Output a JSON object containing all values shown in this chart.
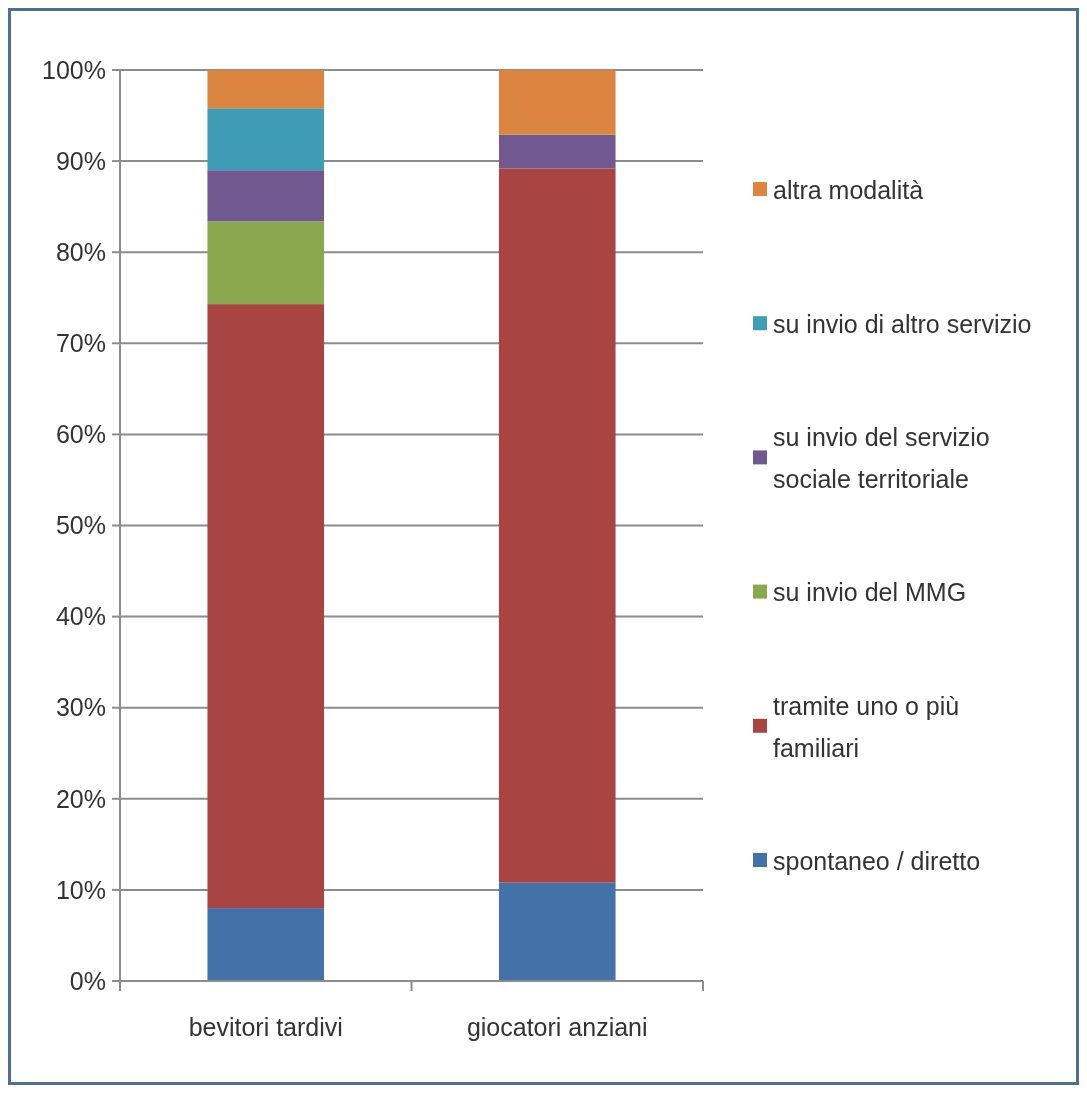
{
  "chart_data": {
    "type": "bar",
    "stacked": true,
    "categories": [
      "bevitori tardivi",
      "giocatori anziani"
    ],
    "series": [
      {
        "name": "spontaneo / diretto",
        "color": "#4472a8",
        "values": [
          8,
          10.8
        ]
      },
      {
        "name": "tramite uno o più familiari",
        "color": "#a84442",
        "values": [
          66.3,
          78.4
        ]
      },
      {
        "name": "su invio del MMG",
        "color": "#8aa84e",
        "values": [
          9.1,
          0
        ]
      },
      {
        "name": "su invio del servizio sociale territoriale",
        "color": "#71598f",
        "values": [
          5.6,
          3.7
        ]
      },
      {
        "name": "su invio di altro servizio",
        "color": "#3e9cb4",
        "values": [
          6.8,
          0
        ]
      },
      {
        "name": "altra modalità",
        "color": "#dc8540",
        "values": [
          4.2,
          7.1
        ]
      }
    ],
    "ylim": [
      0,
      100
    ],
    "yticks": [
      {
        "value": 0,
        "label": "0%"
      },
      {
        "value": 10,
        "label": "10%"
      },
      {
        "value": 20,
        "label": "20%"
      },
      {
        "value": 30,
        "label": "30%"
      },
      {
        "value": 40,
        "label": "40%"
      },
      {
        "value": 50,
        "label": "50%"
      },
      {
        "value": 60,
        "label": "60%"
      },
      {
        "value": 70,
        "label": "70%"
      },
      {
        "value": 80,
        "label": "80%"
      },
      {
        "value": 90,
        "label": "90%"
      },
      {
        "value": 100,
        "label": "100%"
      }
    ],
    "grid": "y",
    "legend": "right"
  }
}
